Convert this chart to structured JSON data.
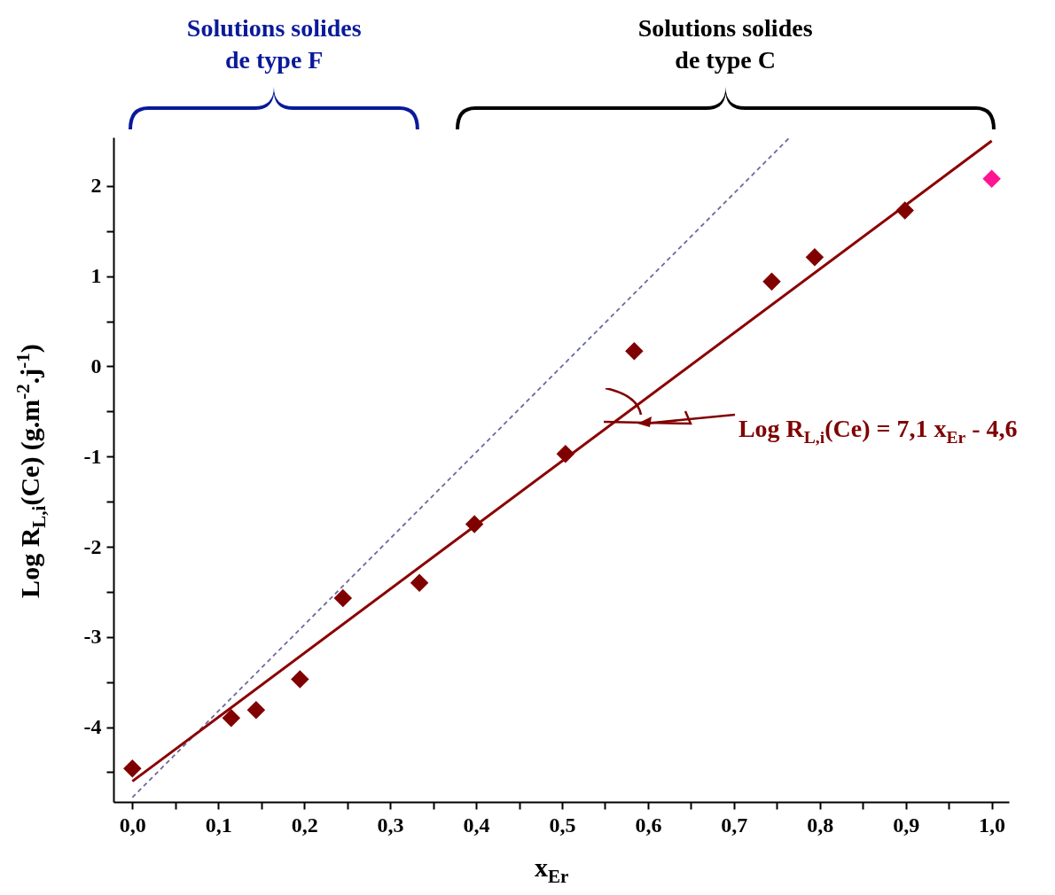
{
  "chart_data": {
    "type": "scatter",
    "xlabel": "x$_{Er}$",
    "ylabel": "Log R$_{L,i}$(Ce) (g.m$^{-2}$.j$^{-1}$)",
    "xlim": [
      -0.022,
      1.02
    ],
    "ylim": [
      -4.83,
      2.54
    ],
    "xticks": [
      {
        "value": 0,
        "label": "0,0"
      },
      {
        "value": 0.05,
        "label": null
      },
      {
        "value": 0.1,
        "label": "0,1"
      },
      {
        "value": 0.15,
        "label": null
      },
      {
        "value": 0.2,
        "label": "0,2"
      },
      {
        "value": 0.25,
        "label": null
      },
      {
        "value": 0.3,
        "label": "0,3"
      },
      {
        "value": 0.35,
        "label": null
      },
      {
        "value": 0.4,
        "label": "0,4"
      },
      {
        "value": 0.45,
        "label": null
      },
      {
        "value": 0.5,
        "label": "0,5"
      },
      {
        "value": 0.55,
        "label": null
      },
      {
        "value": 0.6,
        "label": "0,6"
      },
      {
        "value": 0.65,
        "label": null
      },
      {
        "value": 0.7,
        "label": "0,7"
      },
      {
        "value": 0.75,
        "label": null
      },
      {
        "value": 0.8,
        "label": "0,8"
      },
      {
        "value": 0.85,
        "label": null
      },
      {
        "value": 0.9,
        "label": "0,9"
      },
      {
        "value": 0.95,
        "label": null
      },
      {
        "value": 1,
        "label": "1,0"
      }
    ],
    "yticks": [
      {
        "value": -4.5,
        "label": null
      },
      -4,
      {
        "value": -3.5,
        "label": null
      },
      -3,
      {
        "value": -2.5,
        "label": null
      },
      -2,
      {
        "value": -1.5,
        "label": null
      },
      -1,
      {
        "value": -0.5,
        "label": null
      },
      0,
      {
        "value": 0.5,
        "label": null
      },
      1,
      {
        "value": 1.5,
        "label": null
      },
      2
    ],
    "grid": false,
    "marker": "diamond",
    "series": [
      {
        "type": "line",
        "marker": "none",
        "color": "#6a6a9e",
        "line_style": "dashed",
        "x": [
          0,
          0.765
        ],
        "values": [
          -4.78,
          2.54
        ]
      },
      {
        "type": "line",
        "marker": "none",
        "color": "#8b0000",
        "line_style": "solid",
        "x": [
          0,
          1
        ],
        "values": [
          -4.6,
          2.5
        ]
      },
      {
        "colors": [
          "#800000",
          "#800000",
          "#800000",
          "#800000",
          "#800000",
          "#800000",
          "#800000",
          "#800000",
          "#800000",
          "#800000",
          "#800000",
          "#800000",
          "#ff1493"
        ],
        "x": [
          0,
          0.115,
          0.144,
          0.195,
          0.245,
          0.334,
          0.398,
          0.504,
          0.584,
          0.744,
          0.794,
          0.899,
          1.0
        ],
        "values": [
          -4.46,
          -3.9,
          -3.81,
          -3.47,
          -2.57,
          -2.4,
          -1.75,
          -0.97,
          0.17,
          0.94,
          1.21,
          1.73,
          2.08
        ]
      }
    ],
    "annotations": [
      "Solutions solides\nde type F",
      "Solutions solides\nde type C",
      "Log R$_{L,i}$(Ce) = 7,1 x$_{Er}$ - 4,6"
    ]
  }
}
